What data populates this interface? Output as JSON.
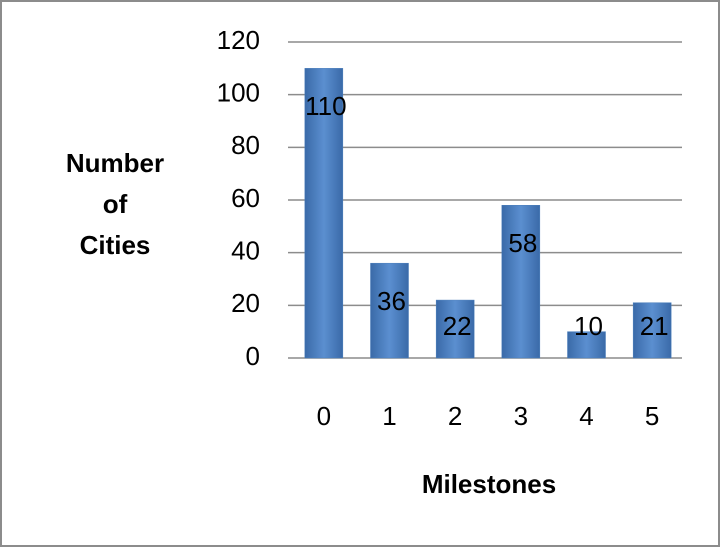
{
  "chart_data": {
    "type": "bar",
    "x_label": "Milestones",
    "y_label": "Number\nof\nCities",
    "categories": [
      "0",
      "1",
      "2",
      "3",
      "4",
      "5"
    ],
    "values": [
      110,
      36,
      22,
      58,
      10,
      21
    ],
    "color": "#4a7ebb",
    "ylim": [
      0,
      120
    ],
    "yticks": [
      0,
      20,
      40,
      60,
      80,
      100,
      120
    ],
    "grid": true
  }
}
